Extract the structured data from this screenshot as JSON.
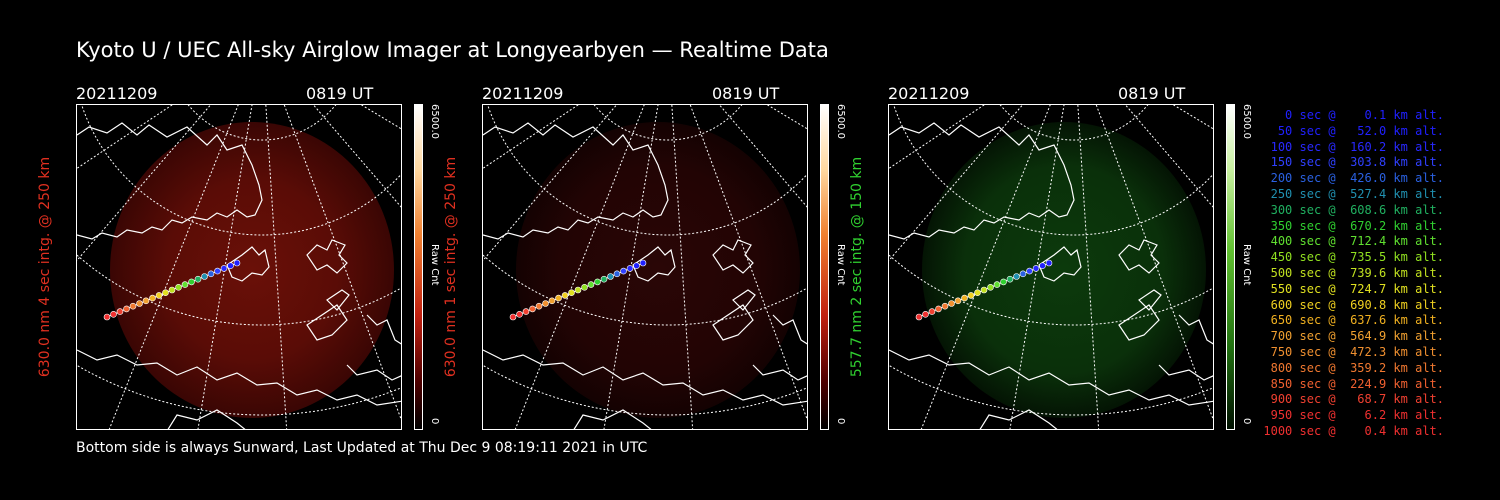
{
  "title": "Kyoto U / UEC All-sky Airglow Imager at Longyearbyen — Realtime Data",
  "footer": "Bottom side is always Sunward, Last Updated at Thu Dec  9 08:19:11 2021 in UTC",
  "panels": [
    {
      "date": "20211209",
      "time": "0819 UT",
      "ylabel": "630.0 nm 4 sec intg. @ 250 km",
      "label_color": "#e03020",
      "cbar_max": "6500.0",
      "cbar_min": "0",
      "cbar_unit": "Raw Cnt",
      "theme": "red",
      "intensity": "bright"
    },
    {
      "date": "20211209",
      "time": "0819 UT",
      "ylabel": "630.0 nm 1 sec intg. @ 250 km",
      "label_color": "#e03020",
      "cbar_max": "6500.0",
      "cbar_min": "0",
      "cbar_unit": "Raw Cnt",
      "theme": "red",
      "intensity": "dim"
    },
    {
      "date": "20211209",
      "time": "0819 UT",
      "ylabel": "557.7 nm 2 sec intg. @ 150 km",
      "label_color": "#30d030",
      "cbar_max": "6500.0",
      "cbar_min": "0",
      "cbar_unit": "Raw Cnt",
      "theme": "green",
      "intensity": "dim"
    }
  ],
  "legend": [
    {
      "text": "   0 sec @    0.1 km alt.",
      "color": "#2020ff"
    },
    {
      "text": "  50 sec @   52.0 km alt.",
      "color": "#2020ff"
    },
    {
      "text": " 100 sec @  160.2 km alt.",
      "color": "#2828ff"
    },
    {
      "text": " 150 sec @  303.8 km alt.",
      "color": "#3040ff"
    },
    {
      "text": " 200 sec @  426.0 km alt.",
      "color": "#2a60e0"
    },
    {
      "text": " 250 sec @  527.4 km alt.",
      "color": "#2090b0"
    },
    {
      "text": " 300 sec @  608.6 km alt.",
      "color": "#20b060"
    },
    {
      "text": " 350 sec @  670.2 km alt.",
      "color": "#30d030"
    },
    {
      "text": " 400 sec @  712.4 km alt.",
      "color": "#60e030"
    },
    {
      "text": " 450 sec @  735.5 km alt.",
      "color": "#90e020"
    },
    {
      "text": " 500 sec @  739.6 km alt.",
      "color": "#c0e020"
    },
    {
      "text": " 550 sec @  724.7 km alt.",
      "color": "#e0e020"
    },
    {
      "text": " 600 sec @  690.8 km alt.",
      "color": "#f0d020"
    },
    {
      "text": " 650 sec @  637.6 km alt.",
      "color": "#f0b020"
    },
    {
      "text": " 700 sec @  564.9 km alt.",
      "color": "#f0a030"
    },
    {
      "text": " 750 sec @  472.3 km alt.",
      "color": "#f09030"
    },
    {
      "text": " 800 sec @  359.2 km alt.",
      "color": "#f07830"
    },
    {
      "text": " 850 sec @  224.9 km alt.",
      "color": "#f06030"
    },
    {
      "text": " 900 sec @   68.7 km alt.",
      "color": "#f04030"
    },
    {
      "text": " 950 sec @    6.2 km alt.",
      "color": "#f03030"
    },
    {
      "text": "1000 sec @    0.4 km alt.",
      "color": "#f03030"
    }
  ]
}
